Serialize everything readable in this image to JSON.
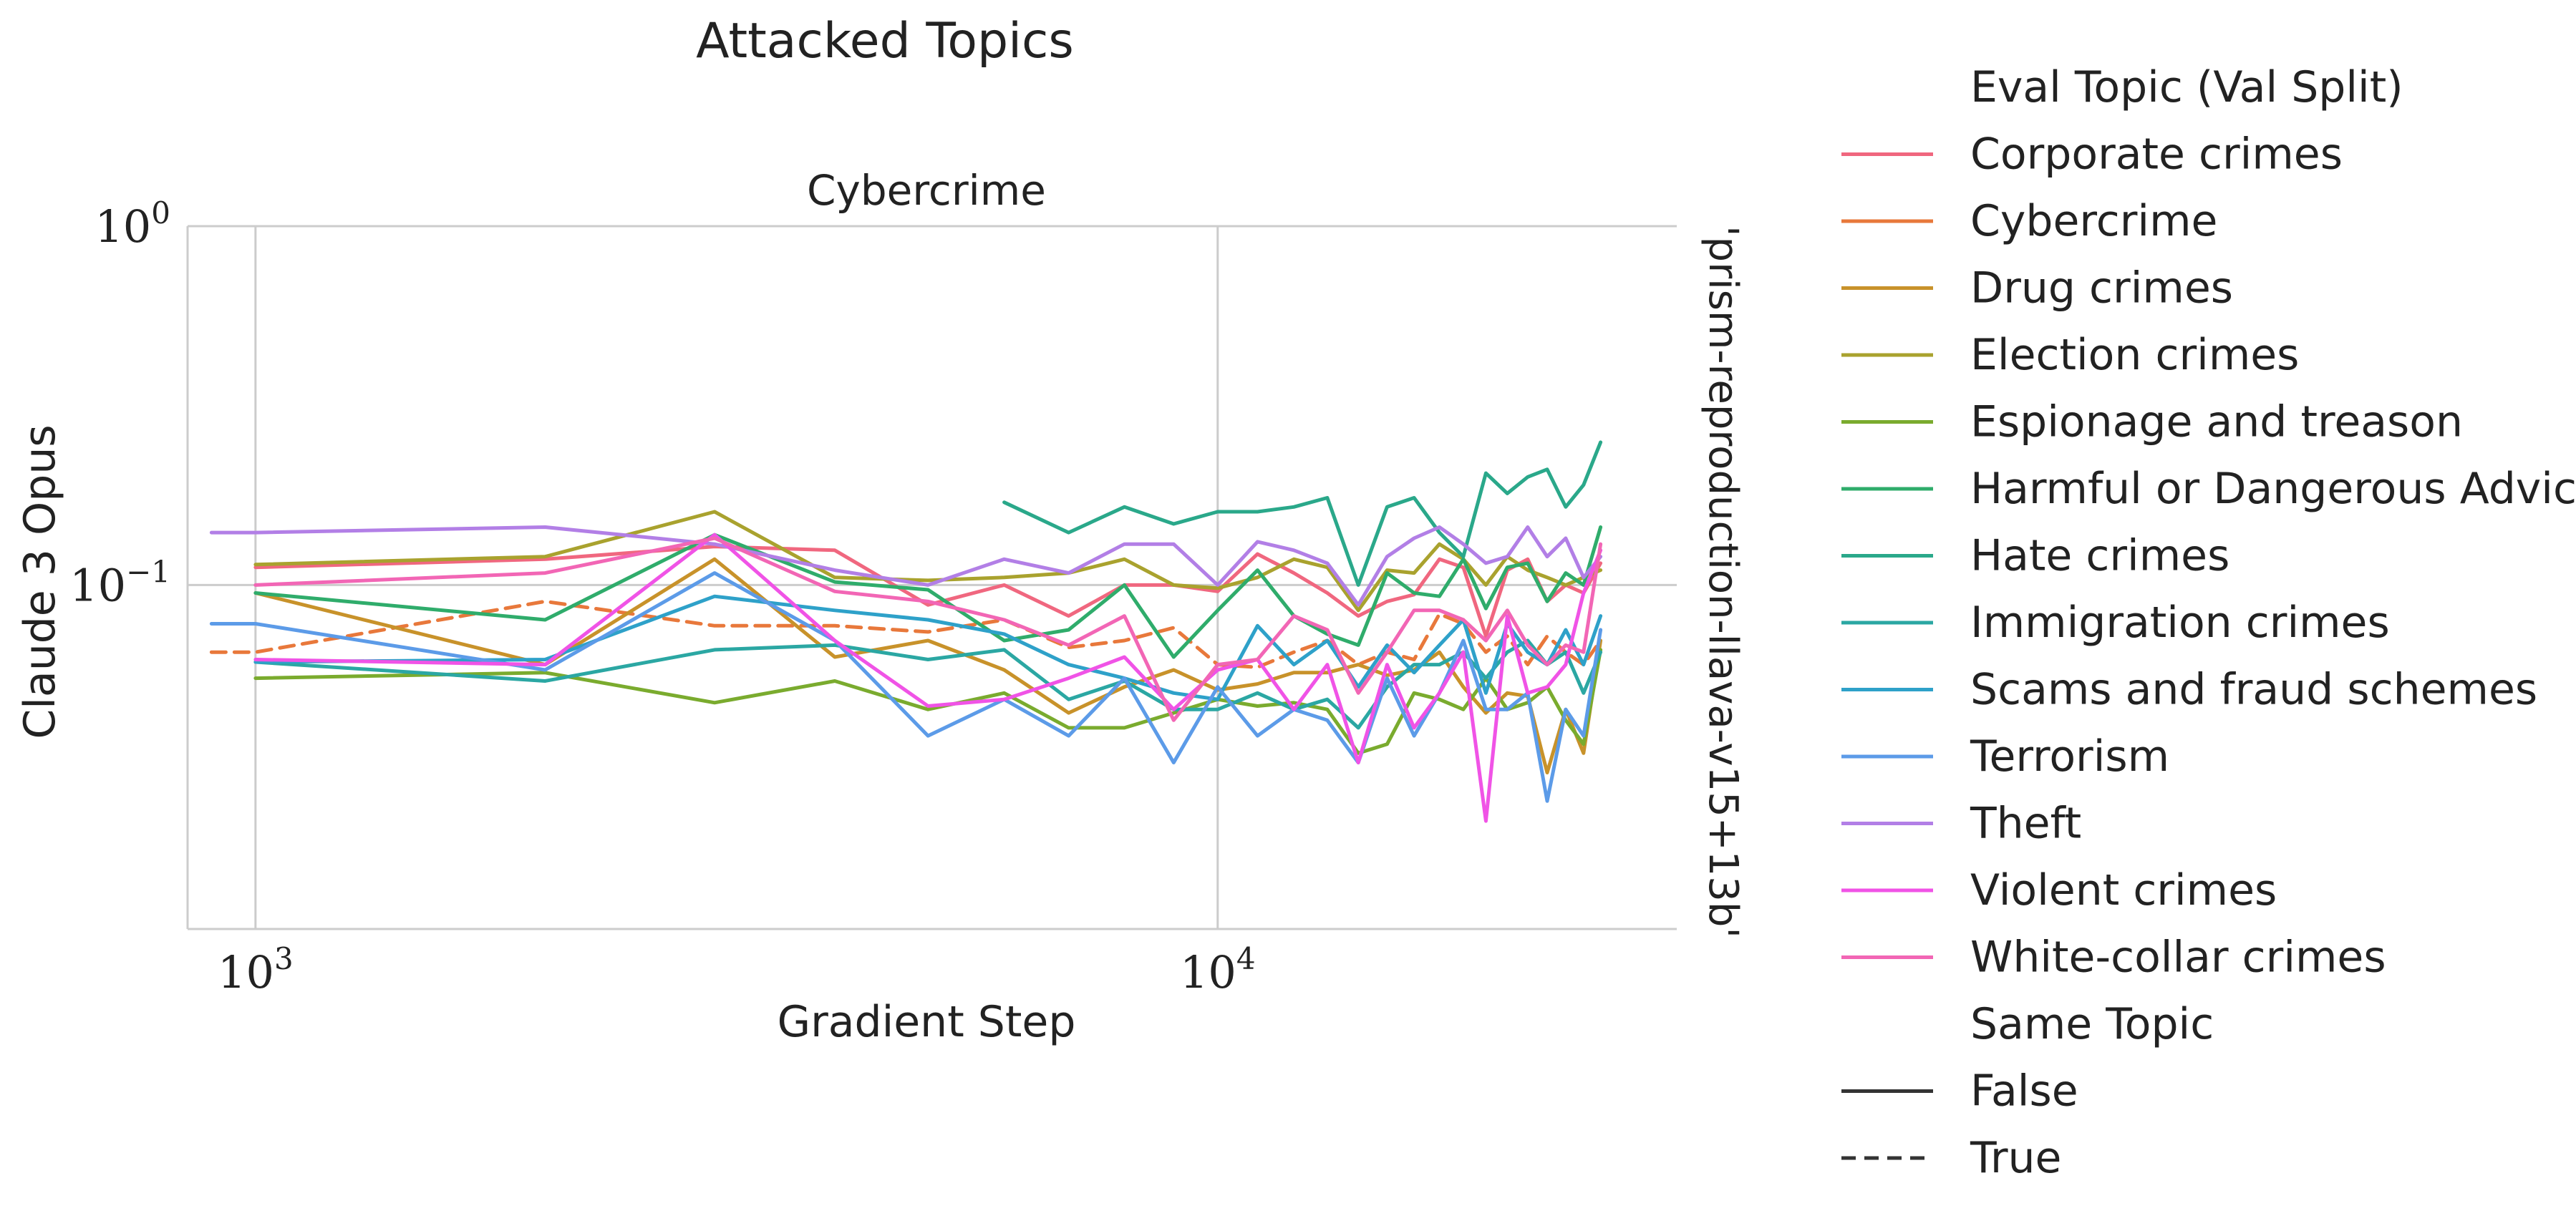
{
  "chart_data": {
    "type": "line",
    "title": "Attacked Topics",
    "subtitle": "Cybercrime",
    "xlabel": "Gradient Step",
    "ylabel": "Claude 3 Opus",
    "row_label": "'prism-reproduction-llava-v15+13b'",
    "x_scale": "log",
    "y_scale": "log",
    "xlim": [
      850,
      30000
    ],
    "ylim": [
      0.011,
      1.0
    ],
    "x_ticks": [
      {
        "value": 1000,
        "base": "10",
        "exp": "3"
      },
      {
        "value": 10000,
        "base": "10",
        "exp": "4"
      }
    ],
    "y_ticks": [
      {
        "value": 1.0,
        "base": "10",
        "exp": "0"
      },
      {
        "value": 0.1,
        "base": "10",
        "exp": "−1"
      }
    ],
    "grid": true,
    "legend_placement": "right",
    "legend_title_hue": "Eval Topic (Val Split)",
    "legend_title_style": "Same Topic",
    "style_entries": [
      {
        "label": "False",
        "dash": "solid"
      },
      {
        "label": "True",
        "dash": "dashed"
      }
    ],
    "series": [
      {
        "name": "Corporate crimes",
        "color": "#f0677f",
        "dash": "solid",
        "x": [
          1000,
          2000,
          3000,
          4000,
          5000,
          6000,
          7000,
          8000,
          9000,
          10000,
          11000,
          12000,
          13000,
          14000,
          15000,
          16000,
          17000,
          18000,
          19000,
          20000,
          21000,
          22000,
          23000,
          24000,
          25000
        ],
        "y": [
          0.112,
          0.118,
          0.128,
          0.125,
          0.088,
          0.1,
          0.082,
          0.1,
          0.1,
          0.096,
          0.122,
          0.108,
          0.095,
          0.082,
          0.09,
          0.094,
          0.118,
          0.112,
          0.072,
          0.11,
          0.118,
          0.09,
          0.1,
          0.095,
          0.115
        ]
      },
      {
        "name": "Cybercrime",
        "color": "#e8783b",
        "dash": "dashed",
        "x": [
          900,
          1000,
          2000,
          3000,
          4000,
          5000,
          6000,
          7000,
          8000,
          9000,
          10000,
          11000,
          12000,
          13000,
          14000,
          15000,
          16000,
          17000,
          18000,
          19000,
          20000,
          21000,
          22000,
          23000,
          24000,
          25000
        ],
        "y": [
          0.065,
          0.065,
          0.09,
          0.077,
          0.077,
          0.074,
          0.08,
          0.067,
          0.07,
          0.076,
          0.06,
          0.059,
          0.065,
          0.07,
          0.06,
          0.065,
          0.062,
          0.083,
          0.078,
          0.065,
          0.072,
          0.06,
          0.072,
          0.065,
          0.06,
          0.07
        ]
      },
      {
        "name": "Drug crimes",
        "color": "#c8922a",
        "dash": "solid",
        "x": [
          1000,
          2000,
          3000,
          4000,
          5000,
          6000,
          7000,
          8000,
          9000,
          10000,
          11000,
          12000,
          13000,
          14000,
          15000,
          16000,
          17000,
          18000,
          19000,
          20000,
          21000,
          22000,
          23000,
          24000,
          25000
        ],
        "y": [
          0.095,
          0.06,
          0.118,
          0.063,
          0.07,
          0.058,
          0.044,
          0.052,
          0.058,
          0.051,
          0.053,
          0.057,
          0.057,
          0.06,
          0.056,
          0.058,
          0.065,
          0.052,
          0.044,
          0.05,
          0.049,
          0.03,
          0.045,
          0.034,
          0.07
        ]
      },
      {
        "name": "Election crimes",
        "color": "#a9a22e",
        "dash": "solid",
        "x": [
          1000,
          2000,
          3000,
          4000,
          5000,
          6000,
          7000,
          8000,
          9000,
          10000,
          11000,
          12000,
          13000,
          14000,
          15000,
          16000,
          17000,
          18000,
          19000,
          20000,
          21000,
          22000,
          23000,
          24000,
          25000
        ],
        "y": [
          0.114,
          0.12,
          0.16,
          0.105,
          0.103,
          0.105,
          0.108,
          0.118,
          0.1,
          0.098,
          0.105,
          0.118,
          0.112,
          0.085,
          0.11,
          0.108,
          0.13,
          0.118,
          0.1,
          0.12,
          0.11,
          0.105,
          0.1,
          0.105,
          0.11
        ]
      },
      {
        "name": "Espionage and treason",
        "color": "#7aab2e",
        "dash": "solid",
        "x": [
          1000,
          2000,
          3000,
          4000,
          5000,
          6000,
          7000,
          8000,
          9000,
          10000,
          11000,
          12000,
          13000,
          14000,
          15000,
          16000,
          17000,
          18000,
          19000,
          20000,
          21000,
          22000,
          23000,
          24000,
          25000
        ],
        "y": [
          0.055,
          0.057,
          0.047,
          0.054,
          0.045,
          0.05,
          0.04,
          0.04,
          0.044,
          0.048,
          0.046,
          0.047,
          0.045,
          0.034,
          0.036,
          0.05,
          0.048,
          0.045,
          0.055,
          0.045,
          0.047,
          0.052,
          0.042,
          0.036,
          0.066
        ]
      },
      {
        "name": "Harmful or Dangerous Advice",
        "color": "#2fac6b",
        "dash": "solid",
        "x": [
          1000,
          2000,
          3000,
          4000,
          5000,
          6000,
          7000,
          8000,
          9000,
          10000,
          11000,
          12000,
          13000,
          14000,
          15000,
          16000,
          17000,
          18000,
          19000,
          20000,
          21000,
          22000,
          23000,
          24000,
          25000
        ],
        "y": [
          0.095,
          0.08,
          0.138,
          0.102,
          0.097,
          0.07,
          0.075,
          0.1,
          0.063,
          0.085,
          0.11,
          0.082,
          0.073,
          0.068,
          0.108,
          0.095,
          0.093,
          0.118,
          0.086,
          0.112,
          0.115,
          0.09,
          0.108,
          0.1,
          0.145
        ]
      },
      {
        "name": "Hate crimes",
        "color": "#2aa88a",
        "dash": "solid",
        "x": [
          6000,
          7000,
          8000,
          9000,
          10000,
          11000,
          12000,
          13000,
          14000,
          15000,
          16000,
          17000,
          18000,
          19000,
          20000,
          21000,
          22000,
          23000,
          24000,
          25000
        ],
        "y": [
          0.17,
          0.14,
          0.165,
          0.148,
          0.16,
          0.16,
          0.165,
          0.175,
          0.1,
          0.165,
          0.175,
          0.14,
          0.12,
          0.205,
          0.18,
          0.2,
          0.21,
          0.165,
          0.19,
          0.25
        ]
      },
      {
        "name": "Immigration crimes",
        "color": "#2ba7a3",
        "dash": "solid",
        "x": [
          1000,
          2000,
          3000,
          4000,
          5000,
          6000,
          7000,
          8000,
          9000,
          10000,
          11000,
          12000,
          13000,
          14000,
          15000,
          16000,
          17000,
          18000,
          19000,
          20000,
          21000,
          22000,
          23000,
          24000,
          25000
        ],
        "y": [
          0.061,
          0.054,
          0.066,
          0.068,
          0.062,
          0.066,
          0.048,
          0.054,
          0.045,
          0.045,
          0.05,
          0.045,
          0.048,
          0.04,
          0.052,
          0.06,
          0.06,
          0.065,
          0.055,
          0.065,
          0.07,
          0.06,
          0.065,
          0.05,
          0.065
        ]
      },
      {
        "name": "Scams and fraud schemes",
        "color": "#2ea1c9",
        "dash": "solid",
        "x": [
          1000,
          2000,
          3000,
          4000,
          5000,
          6000,
          7000,
          8000,
          9000,
          10000,
          11000,
          12000,
          13000,
          14000,
          15000,
          16000,
          17000,
          18000,
          19000,
          20000,
          21000,
          22000,
          23000,
          24000,
          25000
        ],
        "y": [
          0.061,
          0.062,
          0.093,
          0.085,
          0.08,
          0.073,
          0.06,
          0.055,
          0.05,
          0.048,
          0.077,
          0.06,
          0.07,
          0.052,
          0.068,
          0.057,
          0.068,
          0.08,
          0.05,
          0.078,
          0.065,
          0.06,
          0.075,
          0.06,
          0.082
        ]
      },
      {
        "name": "Terrorism",
        "color": "#5c9be8",
        "dash": "solid",
        "x": [
          900,
          1000,
          2000,
          3000,
          4000,
          5000,
          6000,
          7000,
          8000,
          9000,
          10000,
          11000,
          12000,
          13000,
          14000,
          15000,
          16000,
          17000,
          18000,
          19000,
          20000,
          21000,
          22000,
          23000,
          24000,
          25000
        ],
        "y": [
          0.078,
          0.078,
          0.058,
          0.108,
          0.07,
          0.038,
          0.048,
          0.038,
          0.055,
          0.032,
          0.052,
          0.038,
          0.045,
          0.042,
          0.032,
          0.055,
          0.038,
          0.05,
          0.07,
          0.045,
          0.045,
          0.05,
          0.025,
          0.045,
          0.038,
          0.075
        ]
      },
      {
        "name": "Theft",
        "color": "#b27fe6",
        "dash": "solid",
        "x": [
          900,
          1000,
          2000,
          3000,
          4000,
          5000,
          6000,
          7000,
          8000,
          9000,
          10000,
          11000,
          12000,
          13000,
          14000,
          15000,
          16000,
          17000,
          18000,
          19000,
          20000,
          21000,
          22000,
          23000,
          24000,
          25000
        ],
        "y": [
          0.14,
          0.14,
          0.145,
          0.13,
          0.11,
          0.1,
          0.118,
          0.108,
          0.13,
          0.13,
          0.1,
          0.132,
          0.125,
          0.115,
          0.088,
          0.12,
          0.135,
          0.145,
          0.13,
          0.115,
          0.12,
          0.145,
          0.12,
          0.135,
          0.105,
          0.12
        ]
      },
      {
        "name": "Violent crimes",
        "color": "#f053e6",
        "dash": "solid",
        "x": [
          1000,
          2000,
          3000,
          4000,
          5000,
          6000,
          7000,
          8000,
          9000,
          10000,
          11000,
          12000,
          13000,
          14000,
          15000,
          16000,
          17000,
          18000,
          19000,
          20000,
          21000,
          22000,
          23000,
          24000,
          25000
        ],
        "y": [
          0.062,
          0.06,
          0.138,
          0.07,
          0.046,
          0.048,
          0.055,
          0.063,
          0.045,
          0.058,
          0.062,
          0.045,
          0.06,
          0.032,
          0.06,
          0.04,
          0.05,
          0.065,
          0.022,
          0.082,
          0.05,
          0.052,
          0.06,
          0.095,
          0.125
        ]
      },
      {
        "name": "White-collar crimes",
        "color": "#f266b5",
        "dash": "solid",
        "x": [
          1000,
          2000,
          3000,
          4000,
          5000,
          6000,
          7000,
          8000,
          9000,
          10000,
          11000,
          12000,
          13000,
          14000,
          15000,
          16000,
          17000,
          18000,
          19000,
          20000,
          21000,
          22000,
          23000,
          24000,
          25000
        ],
        "y": [
          0.1,
          0.108,
          0.135,
          0.096,
          0.09,
          0.08,
          0.068,
          0.082,
          0.042,
          0.06,
          0.062,
          0.082,
          0.075,
          0.05,
          0.065,
          0.085,
          0.085,
          0.08,
          0.07,
          0.085,
          0.068,
          0.06,
          0.068,
          0.065,
          0.13
        ]
      }
    ]
  }
}
